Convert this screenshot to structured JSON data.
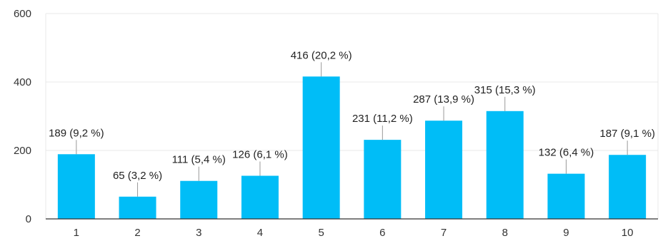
{
  "chart_data": {
    "type": "bar",
    "title": "",
    "xlabel": "",
    "ylabel": "",
    "categories": [
      "1",
      "2",
      "3",
      "4",
      "5",
      "6",
      "7",
      "8",
      "9",
      "10"
    ],
    "values": [
      189,
      65,
      111,
      126,
      416,
      231,
      287,
      315,
      132,
      187
    ],
    "data_labels": [
      "189 (9,2 %)",
      "65 (3,2 %)",
      "111 (5,4 %)",
      "126 (6,1 %)",
      "416 (20,2 %)",
      "231 (11,2 %)",
      "287 (13,9 %)",
      "315 (15,3 %)",
      "132 (6,4 %)",
      "187 (9,1 %)"
    ],
    "ylim": [
      0,
      600
    ],
    "yticks": [
      "0",
      "200",
      "400",
      "600"
    ],
    "grid": true,
    "legend": "none",
    "colors": {
      "bar": "#00bdf7",
      "grid": "#e8e8e8",
      "axis": "#333333",
      "leader": "#999999"
    }
  }
}
